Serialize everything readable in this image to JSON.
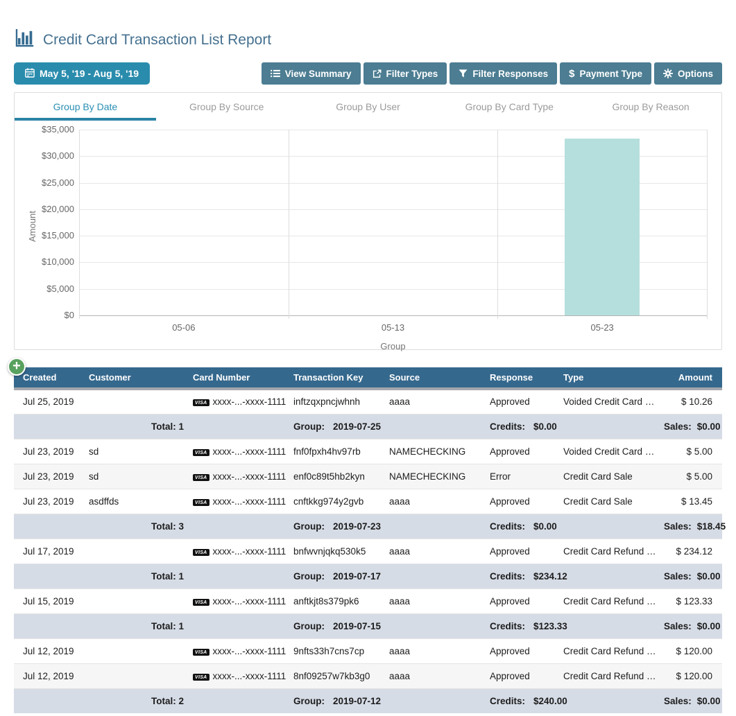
{
  "header": {
    "title": "Credit Card Transaction List Report"
  },
  "toolbar": {
    "date_range": "May 5, '19 - Aug 5, '19",
    "buttons": [
      {
        "label": "View Summary",
        "icon": "list-icon"
      },
      {
        "label": "Filter Types",
        "icon": "external-link-icon"
      },
      {
        "label": "Filter Responses",
        "icon": "filter-icon"
      },
      {
        "label": "Payment Type",
        "icon": "dollar-icon"
      },
      {
        "label": "Options",
        "icon": "gear-icon"
      }
    ]
  },
  "tabs": [
    {
      "label": "Group By Date",
      "active": true
    },
    {
      "label": "Group By Source",
      "active": false
    },
    {
      "label": "Group By User",
      "active": false
    },
    {
      "label": "Group By Card Type",
      "active": false
    },
    {
      "label": "Group By Reason",
      "active": false
    }
  ],
  "chart_data": {
    "type": "bar",
    "title": "",
    "xlabel": "Group",
    "ylabel": "Amount",
    "categories": [
      "05-06",
      "05-13",
      "05-23"
    ],
    "values": [
      0,
      0,
      33300
    ],
    "ylim": [
      0,
      35000
    ],
    "ytick_step": 5000,
    "ytick_labels": [
      "$0",
      "$5,000",
      "$10,000",
      "$15,000",
      "$20,000",
      "$25,000",
      "$30,000",
      "$35,000"
    ],
    "bar_color": "#b5dfdc",
    "grid": true,
    "legend": "none"
  },
  "colors": {
    "accent_date_button": "#2a8cad",
    "accent_action_button": "#4c7d92",
    "table_header": "#35688d",
    "summary_row": "#d6dce6",
    "bar": "#b5dfdc",
    "add_button": "#58a15e",
    "active_tab": "#2a8fb3"
  },
  "table": {
    "card_badge": "VISA",
    "columns": [
      "Created",
      "Customer",
      "Card Number",
      "Transaction Key",
      "Source",
      "Response",
      "Type",
      "Amount"
    ],
    "summary_labels": {
      "total": "Total:",
      "group": "Group:",
      "credits": "Credits:",
      "sales": "Sales:"
    },
    "rows": [
      {
        "kind": "data",
        "created": "Jul 25, 2019",
        "customer": "",
        "card": "xxxx-...-xxxx-1111",
        "transaction_key": "inftzqxpncjwhnh",
        "source": "aaaa",
        "response": "Approved",
        "type": "Voided Credit Card …",
        "amount": "$ 10.26",
        "shaded": false
      },
      {
        "kind": "summary",
        "total": "1",
        "group": "2019-07-25",
        "credits": "$0.00",
        "sales": "$0.00"
      },
      {
        "kind": "data",
        "created": "Jul 23, 2019",
        "customer": "sd",
        "card": "xxxx-...-xxxx-1111",
        "transaction_key": "fnf0fpxh4hv97rb",
        "source": "NAMECHECKING",
        "response": "Approved",
        "type": "Voided Credit Card …",
        "amount": "$ 5.00",
        "shaded": false
      },
      {
        "kind": "data",
        "created": "Jul 23, 2019",
        "customer": "sd",
        "card": "xxxx-...-xxxx-1111",
        "transaction_key": "enf0c89t5hb2kyn",
        "source": "NAMECHECKING",
        "response": "Error",
        "type": "Credit Card Sale",
        "amount": "$ 5.00",
        "shaded": true
      },
      {
        "kind": "data",
        "created": "Jul 23, 2019",
        "customer": "asdffds",
        "card": "xxxx-...-xxxx-1111",
        "transaction_key": "cnftkkg974y2gvb",
        "source": "aaaa",
        "response": "Approved",
        "type": "Credit Card Sale",
        "amount": "$ 13.45",
        "shaded": false
      },
      {
        "kind": "summary",
        "total": "3",
        "group": "2019-07-23",
        "credits": "$0.00",
        "sales": "$18.45"
      },
      {
        "kind": "data",
        "created": "Jul 17, 2019",
        "customer": "",
        "card": "xxxx-...-xxxx-1111",
        "transaction_key": "bnfwvnjqkq530k5",
        "source": "aaaa",
        "response": "Approved",
        "type": "Credit Card Refund …",
        "amount": "$ 234.12",
        "shaded": false
      },
      {
        "kind": "summary",
        "total": "1",
        "group": "2019-07-17",
        "credits": "$234.12",
        "sales": "$0.00"
      },
      {
        "kind": "data",
        "created": "Jul 15, 2019",
        "customer": "",
        "card": "xxxx-...-xxxx-1111",
        "transaction_key": "anftkjt8s379pk6",
        "source": "aaaa",
        "response": "Approved",
        "type": "Credit Card Refund …",
        "amount": "$ 123.33",
        "shaded": false
      },
      {
        "kind": "summary",
        "total": "1",
        "group": "2019-07-15",
        "credits": "$123.33",
        "sales": "$0.00"
      },
      {
        "kind": "data",
        "created": "Jul 12, 2019",
        "customer": "",
        "card": "xxxx-...-xxxx-1111",
        "transaction_key": "9nfts33h7cns7cp",
        "source": "aaaa",
        "response": "Approved",
        "type": "Credit Card Refund …",
        "amount": "$ 120.00",
        "shaded": false
      },
      {
        "kind": "data",
        "created": "Jul 12, 2019",
        "customer": "",
        "card": "xxxx-...-xxxx-1111",
        "transaction_key": "8nf09257w7kb3g0",
        "source": "aaaa",
        "response": "Approved",
        "type": "Credit Card Refund …",
        "amount": "$ 120.00",
        "shaded": true
      },
      {
        "kind": "summary",
        "total": "2",
        "group": "2019-07-12",
        "credits": "$240.00",
        "sales": "$0.00"
      }
    ]
  }
}
